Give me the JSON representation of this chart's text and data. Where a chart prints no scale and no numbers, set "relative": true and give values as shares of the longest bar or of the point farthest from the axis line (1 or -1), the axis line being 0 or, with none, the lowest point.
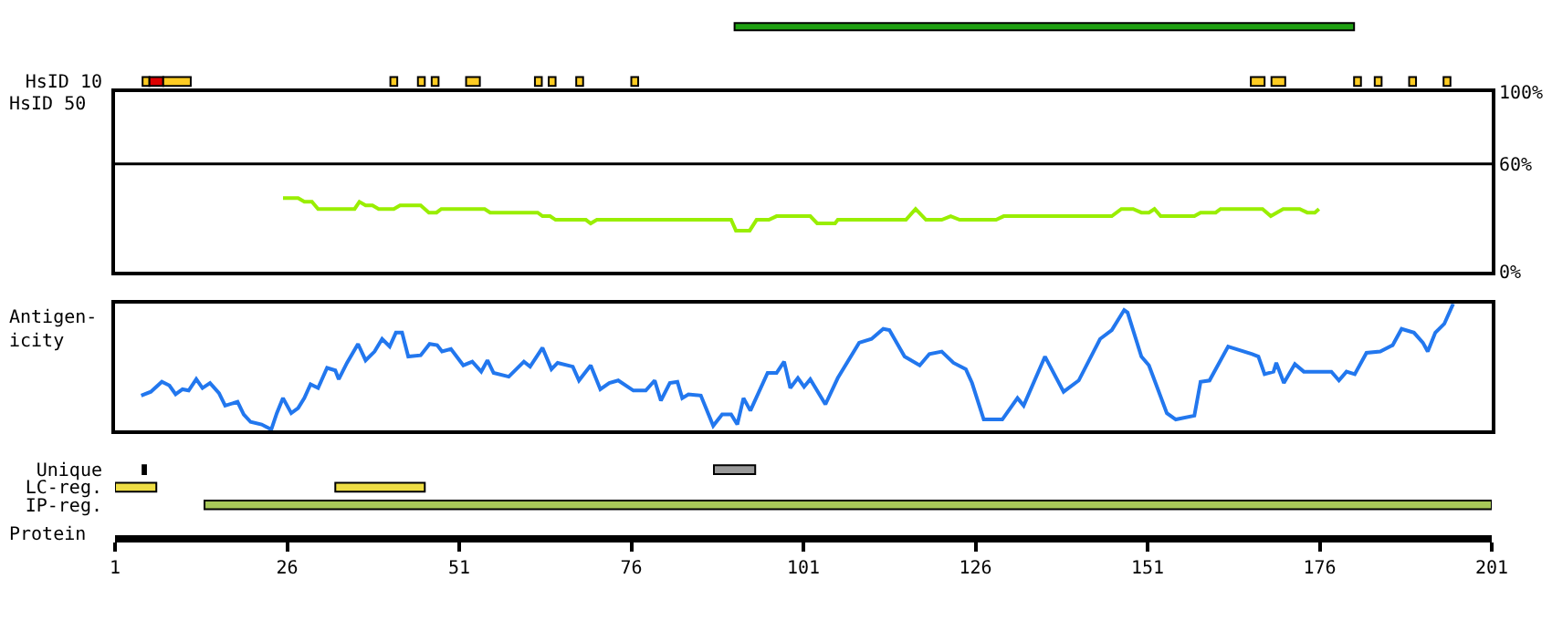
{
  "chart_data": [
    {
      "type": "bar",
      "orientation": "horizontal",
      "categories": [
        null
      ],
      "xlim": [
        1,
        201
      ],
      "tick_labels": false,
      "series": [
        {
          "color": "#1fa012",
          "values": [
            90
          ],
          "base": [
            91
          ]
        }
      ]
    },
    {
      "type": "bar",
      "orientation": "horizontal",
      "categories": [
        "HsID 10"
      ],
      "xlim": [
        1,
        201
      ],
      "tick_labels": "y",
      "series": [
        {
          "color": "#ffcc22",
          "values": [
            1
          ],
          "base": [
            5
          ]
        },
        {
          "color": "#dd0000",
          "values": [
            2
          ],
          "base": [
            6
          ]
        },
        {
          "color": "#ffcc22",
          "values": [
            4
          ],
          "base": [
            8
          ]
        },
        {
          "color": "#ffcc22",
          "values": [
            1
          ],
          "base": [
            41
          ]
        },
        {
          "color": "#ffcc22",
          "values": [
            1
          ],
          "base": [
            45
          ]
        },
        {
          "color": "#ffcc22",
          "values": [
            1
          ],
          "base": [
            47
          ]
        },
        {
          "color": "#ffcc22",
          "values": [
            2
          ],
          "base": [
            52
          ]
        },
        {
          "color": "#ffcc22",
          "values": [
            1
          ],
          "base": [
            62
          ]
        },
        {
          "color": "#ffcc22",
          "values": [
            1
          ],
          "base": [
            64
          ]
        },
        {
          "color": "#ffcc22",
          "values": [
            1
          ],
          "base": [
            68
          ]
        },
        {
          "color": "#ffcc22",
          "values": [
            1
          ],
          "base": [
            76
          ]
        },
        {
          "color": "#ffcc22",
          "values": [
            2
          ],
          "base": [
            166
          ]
        },
        {
          "color": "#ffcc22",
          "values": [
            2
          ],
          "base": [
            169
          ]
        },
        {
          "color": "#ffcc22",
          "values": [
            1
          ],
          "base": [
            181
          ]
        },
        {
          "color": "#ffcc22",
          "values": [
            1
          ],
          "base": [
            184
          ]
        },
        {
          "color": "#ffcc22",
          "values": [
            1
          ],
          "base": [
            189
          ]
        },
        {
          "color": "#ffcc22",
          "values": [
            1
          ],
          "base": [
            194
          ]
        }
      ]
    },
    {
      "type": "line",
      "ylabel": "HsID 50",
      "xlim": [
        1,
        201
      ],
      "ylim": [
        0,
        100
      ],
      "tick_labels": "y",
      "yticks": [
        {
          "value": 0,
          "label": "0%"
        },
        {
          "value": 60,
          "label": "60%"
        },
        {
          "value": 100,
          "label": "100%"
        }
      ],
      "ref_lines": [
        {
          "axis": "y",
          "value": 60,
          "color": "#000000"
        }
      ],
      "series": [
        {
          "color": "#99ee00",
          "x": [
            25.4,
            27.6,
            28.5,
            29.6,
            30.5,
            35.8,
            36.5,
            37.4,
            38.4,
            39.3,
            41.5,
            42.4,
            45.4,
            46.6,
            47.7,
            48.4,
            54.7,
            55.5,
            62.4,
            63.1,
            64.2,
            65.0,
            69.4,
            70.1,
            71.0,
            90.5,
            91.2,
            93.2,
            94.2,
            96.0,
            97.1,
            102.0,
            103.0,
            105.6,
            106.0,
            115.9,
            117.3,
            118.8,
            121.1,
            122.4,
            123.7,
            129.0,
            130.1,
            145.8,
            147.2,
            148.9,
            150.1,
            151.2,
            152.0,
            152.9,
            157.8,
            158.7,
            160.9,
            161.6,
            167.7,
            168.9,
            170.7,
            173.1,
            174.2,
            175.3,
            175.9
          ],
          "values": [
            41,
            41,
            39,
            39,
            35,
            35,
            39,
            37,
            37,
            35,
            35,
            37,
            37,
            33,
            33,
            35,
            35,
            33,
            33,
            31,
            31,
            29,
            29,
            27,
            29,
            29,
            23,
            23,
            29,
            29,
            31,
            31,
            27,
            27,
            29,
            29,
            35,
            29,
            29,
            31,
            29,
            29,
            31,
            31,
            35,
            35,
            33,
            33,
            35,
            31,
            31,
            33,
            33,
            35,
            35,
            31,
            35,
            35,
            33,
            33,
            35
          ]
        }
      ]
    },
    {
      "type": "line",
      "ylabel": "Antigen-\nicity",
      "xlim": [
        1,
        201
      ],
      "relative": true,
      "tick_labels": false,
      "series": [
        {
          "color": "#2277ee",
          "x": [
            4.8,
            6.2,
            7.8,
            8.9,
            9.8,
            10.8,
            11.7,
            12.8,
            13.7,
            14.8,
            16.1,
            17.0,
            18.8,
            19.7,
            20.7,
            22.3,
            23.7,
            24.5,
            25.4,
            26.6,
            27.6,
            28.5,
            29.4,
            30.5,
            31.8,
            33.0,
            33.5,
            34.7,
            36.3,
            37.4,
            38.7,
            39.8,
            40.9,
            41.8,
            42.7,
            43.6,
            45.4,
            46.7,
            47.8,
            48.5,
            49.8,
            51.6,
            52.9,
            54.2,
            55.1,
            56.0,
            58.2,
            60.4,
            61.3,
            63.1,
            64.4,
            65.3,
            67.5,
            68.4,
            70.1,
            71.5,
            72.8,
            74.1,
            76.3,
            78.1,
            79.4,
            80.3,
            81.6,
            82.7,
            83.4,
            84.3,
            86.1,
            87.9,
            89.2,
            90.5,
            91.4,
            92.3,
            93.3,
            95.8,
            97.1,
            98.2,
            99.1,
            100.2,
            101.1,
            102.0,
            104.2,
            106.0,
            109.1,
            110.9,
            112.6,
            113.5,
            115.7,
            117.9,
            119.3,
            121.1,
            122.8,
            124.6,
            125.5,
            127.2,
            129.9,
            132.1,
            133.0,
            136.1,
            138.8,
            141.0,
            144.1,
            145.8,
            147.6,
            148.1,
            150.1,
            151.2,
            153.8,
            155.1,
            157.8,
            158.7,
            160.0,
            162.7,
            166.2,
            167.1,
            168.0,
            169.3,
            169.7,
            170.8,
            172.4,
            173.7,
            177.7,
            178.8,
            179.9,
            181.1,
            182.8,
            184.8,
            186.6,
            187.9,
            189.7,
            191.0,
            191.7,
            192.8,
            194.1,
            195.4
          ],
          "values": [
            0.27,
            0.3,
            0.38,
            0.35,
            0.28,
            0.32,
            0.31,
            0.4,
            0.33,
            0.37,
            0.29,
            0.19,
            0.22,
            0.12,
            0.06,
            0.04,
            0.0,
            0.13,
            0.25,
            0.13,
            0.17,
            0.25,
            0.36,
            0.33,
            0.49,
            0.47,
            0.4,
            0.53,
            0.68,
            0.55,
            0.62,
            0.72,
            0.66,
            0.77,
            0.77,
            0.58,
            0.59,
            0.68,
            0.67,
            0.62,
            0.64,
            0.51,
            0.54,
            0.46,
            0.55,
            0.45,
            0.42,
            0.54,
            0.5,
            0.65,
            0.48,
            0.53,
            0.5,
            0.39,
            0.51,
            0.32,
            0.37,
            0.39,
            0.31,
            0.31,
            0.39,
            0.23,
            0.37,
            0.38,
            0.25,
            0.28,
            0.27,
            0.03,
            0.12,
            0.12,
            0.04,
            0.25,
            0.15,
            0.45,
            0.45,
            0.54,
            0.33,
            0.41,
            0.34,
            0.4,
            0.2,
            0.41,
            0.69,
            0.72,
            0.8,
            0.79,
            0.58,
            0.51,
            0.6,
            0.62,
            0.53,
            0.48,
            0.37,
            0.08,
            0.08,
            0.25,
            0.19,
            0.58,
            0.3,
            0.39,
            0.72,
            0.79,
            0.95,
            0.93,
            0.58,
            0.51,
            0.13,
            0.08,
            0.11,
            0.38,
            0.39,
            0.66,
            0.6,
            0.58,
            0.44,
            0.46,
            0.53,
            0.37,
            0.52,
            0.46,
            0.46,
            0.39,
            0.46,
            0.44,
            0.61,
            0.62,
            0.67,
            0.8,
            0.77,
            0.69,
            0.62,
            0.77,
            0.84,
            1.0
          ]
        }
      ]
    },
    {
      "type": "bar",
      "orientation": "horizontal",
      "categories": [
        "Unique",
        "LC-reg.",
        "IP-reg."
      ],
      "xlabel": "Protein",
      "xlim": [
        1,
        201
      ],
      "xticks": [
        1,
        26,
        51,
        76,
        101,
        126,
        151,
        176,
        201
      ],
      "series": [
        {
          "color": "#000000",
          "values": [
            0.5,
            null,
            null
          ],
          "base": [
            5,
            null,
            null
          ]
        },
        {
          "color": "#999999",
          "values": [
            6,
            null,
            null
          ],
          "base": [
            88,
            null,
            null
          ]
        },
        {
          "color": "#eedd44",
          "values": [
            null,
            6,
            null
          ],
          "base": [
            null,
            1,
            null
          ]
        },
        {
          "color": "#eedd44",
          "values": [
            null,
            13,
            null
          ],
          "base": [
            null,
            33,
            null
          ]
        },
        {
          "color": "#a8c858",
          "values": [
            null,
            null,
            187
          ],
          "base": [
            null,
            null,
            14
          ]
        }
      ]
    }
  ]
}
